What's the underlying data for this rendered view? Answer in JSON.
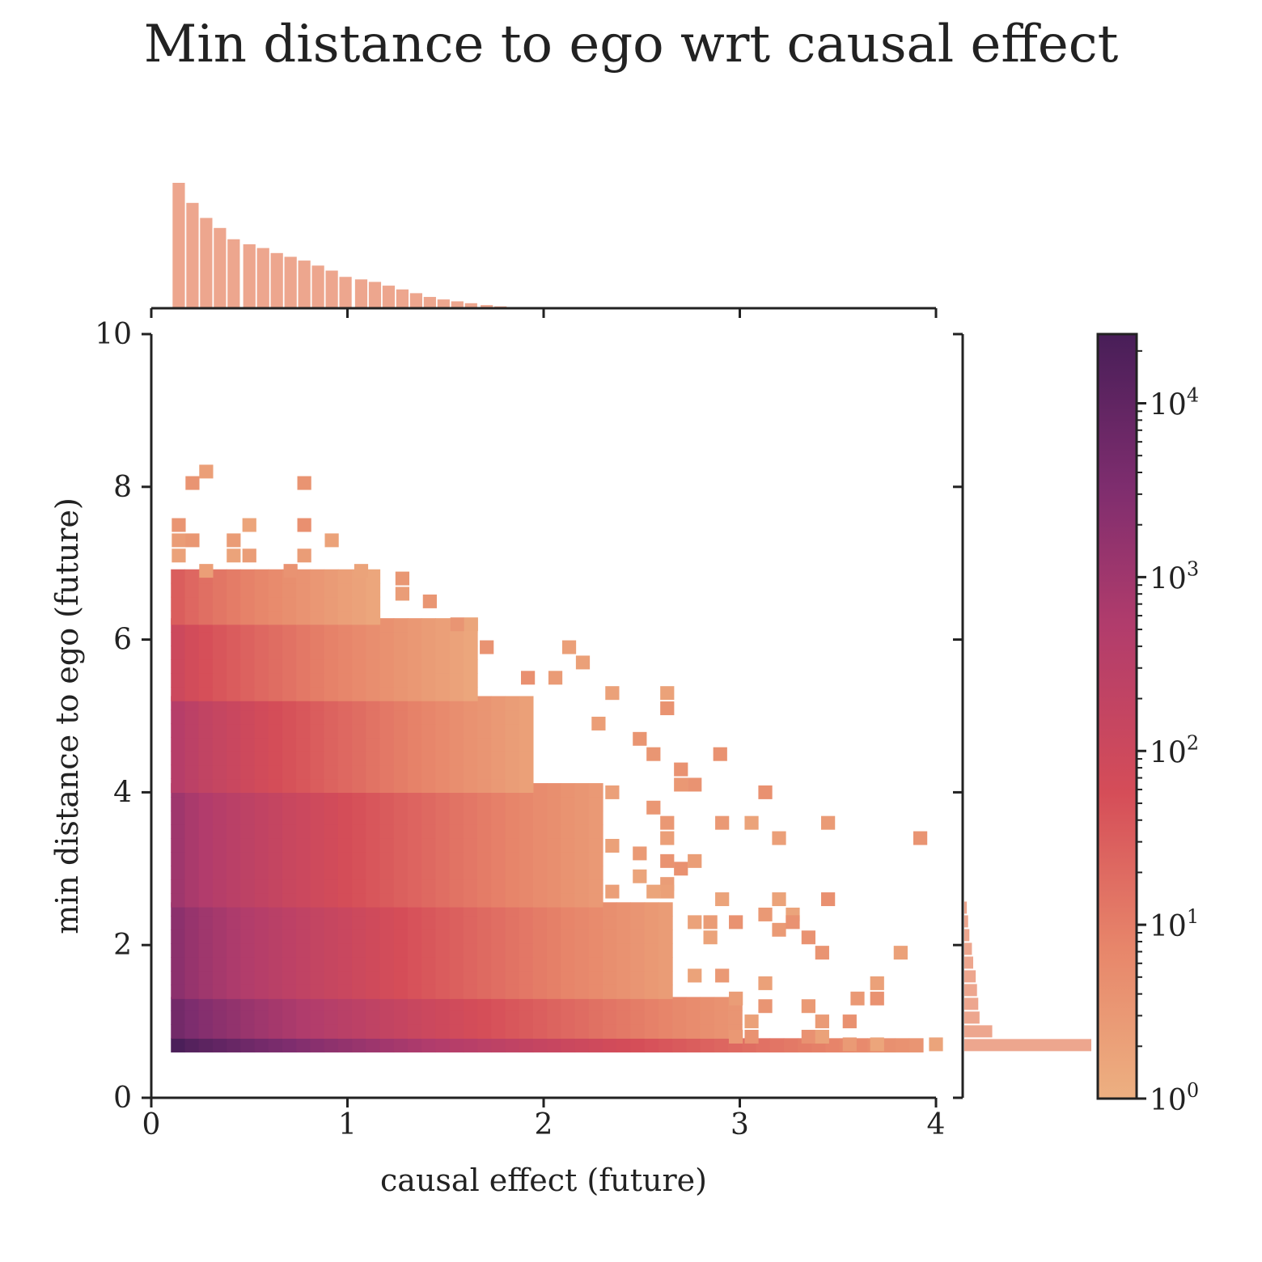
{
  "chart_data": {
    "type": "heatmap",
    "title": "Min distance to ego wrt causal effect",
    "xlabel": "causal effect (future)",
    "ylabel": "min distance to ego (future)",
    "xlim": [
      0,
      4
    ],
    "ylim": [
      0,
      10
    ],
    "x_ticks": [
      "0",
      "1",
      "2",
      "3",
      "4"
    ],
    "y_ticks": [
      "0",
      "2",
      "4",
      "6",
      "8",
      "10"
    ],
    "bin_width_x": 0.071,
    "bin_height_y": 0.18,
    "colorbar": {
      "scale": "log",
      "range": [
        1,
        25000
      ],
      "ticks": [
        {
          "base": "10",
          "exp": "0"
        },
        {
          "base": "10",
          "exp": "1"
        },
        {
          "base": "10",
          "exp": "2"
        },
        {
          "base": "10",
          "exp": "3"
        },
        {
          "base": "10",
          "exp": "4"
        }
      ],
      "colormap": "flare"
    },
    "marginal_color": "#eda68e",
    "marginal_x": {
      "x": [
        0.14,
        0.21,
        0.28,
        0.35,
        0.42,
        0.5,
        0.57,
        0.64,
        0.71,
        0.78,
        0.85,
        0.92,
        0.99,
        1.07,
        1.14,
        1.21,
        1.28,
        1.35,
        1.42,
        1.49,
        1.56,
        1.63,
        1.71,
        1.78
      ],
      "counts": [
        1.0,
        0.84,
        0.72,
        0.64,
        0.55,
        0.51,
        0.48,
        0.44,
        0.41,
        0.38,
        0.34,
        0.3,
        0.25,
        0.23,
        0.21,
        0.18,
        0.15,
        0.12,
        0.09,
        0.07,
        0.055,
        0.04,
        0.025,
        0.015
      ]
    },
    "marginal_y": {
      "y": [
        0.6,
        0.78,
        0.96,
        1.14,
        1.32,
        1.5,
        1.68,
        1.86,
        2.04,
        2.22,
        2.4
      ],
      "counts": [
        1.0,
        0.22,
        0.12,
        0.11,
        0.1,
        0.09,
        0.07,
        0.06,
        0.04,
        0.03,
        0.02
      ]
    },
    "main_cells": [
      {
        "x_max": 3.92,
        "y_min": 0.6,
        "y_max": 0.78,
        "log_max": 4.35,
        "log_min": 0.5
      },
      {
        "x_max": 3.0,
        "y_min": 0.78,
        "y_max": 1.3,
        "log_max": 3.7,
        "log_min": 0.5
      },
      {
        "x_max": 2.6,
        "y_min": 1.3,
        "y_max": 2.5,
        "log_max": 3.3,
        "log_min": 0.4
      },
      {
        "x_max": 2.3,
        "y_min": 2.5,
        "y_max": 4.0,
        "log_max": 3.0,
        "log_min": 0.4
      },
      {
        "x_max": 1.9,
        "y_min": 4.0,
        "y_max": 5.2,
        "log_max": 2.6,
        "log_min": 0.3
      },
      {
        "x_max": 1.6,
        "y_min": 5.2,
        "y_max": 6.2,
        "log_max": 2.0,
        "log_min": 0.2
      },
      {
        "x_max": 1.1,
        "y_min": 6.2,
        "y_max": 6.9,
        "log_max": 1.5,
        "log_min": 0.2
      }
    ],
    "sparse_points": [
      [
        0.14,
        7.5
      ],
      [
        0.14,
        7.3
      ],
      [
        0.14,
        7.1
      ],
      [
        0.21,
        7.3
      ],
      [
        0.21,
        8.05
      ],
      [
        0.28,
        8.2
      ],
      [
        0.28,
        6.9
      ],
      [
        0.42,
        7.3
      ],
      [
        0.42,
        7.1
      ],
      [
        0.5,
        7.5
      ],
      [
        0.5,
        7.1
      ],
      [
        0.78,
        8.05
      ],
      [
        0.78,
        7.5
      ],
      [
        0.78,
        7.1
      ],
      [
        0.92,
        7.3
      ],
      [
        0.71,
        6.9
      ],
      [
        1.07,
        6.9
      ],
      [
        1.28,
        6.8
      ],
      [
        1.28,
        6.6
      ],
      [
        1.42,
        6.5
      ],
      [
        1.56,
        6.2
      ],
      [
        1.63,
        6.2
      ],
      [
        1.71,
        5.9
      ],
      [
        2.13,
        5.9
      ],
      [
        2.2,
        5.7
      ],
      [
        1.92,
        5.5
      ],
      [
        2.06,
        5.5
      ],
      [
        2.35,
        5.3
      ],
      [
        2.63,
        5.3
      ],
      [
        2.63,
        5.1
      ],
      [
        2.28,
        4.9
      ],
      [
        2.49,
        4.7
      ],
      [
        2.56,
        4.5
      ],
      [
        2.9,
        4.5
      ],
      [
        2.7,
        4.3
      ],
      [
        2.7,
        4.1
      ],
      [
        2.77,
        4.1
      ],
      [
        3.13,
        4.0
      ],
      [
        2.35,
        4.0
      ],
      [
        2.56,
        3.8
      ],
      [
        2.63,
        3.6
      ],
      [
        2.63,
        3.4
      ],
      [
        2.91,
        3.6
      ],
      [
        3.06,
        3.6
      ],
      [
        3.45,
        3.6
      ],
      [
        3.2,
        3.4
      ],
      [
        3.92,
        3.4
      ],
      [
        2.35,
        3.3
      ],
      [
        2.49,
        3.2
      ],
      [
        2.63,
        3.1
      ],
      [
        2.7,
        3.0
      ],
      [
        2.77,
        3.1
      ],
      [
        2.49,
        2.9
      ],
      [
        2.63,
        2.8
      ],
      [
        2.35,
        2.7
      ],
      [
        2.56,
        2.7
      ],
      [
        2.63,
        2.7
      ],
      [
        2.91,
        2.6
      ],
      [
        3.2,
        2.6
      ],
      [
        3.45,
        2.6
      ],
      [
        3.13,
        2.4
      ],
      [
        3.27,
        2.4
      ],
      [
        2.77,
        2.3
      ],
      [
        2.85,
        2.3
      ],
      [
        2.98,
        2.3
      ],
      [
        3.2,
        2.2
      ],
      [
        3.27,
        2.3
      ],
      [
        2.85,
        2.1
      ],
      [
        3.35,
        2.1
      ],
      [
        3.42,
        1.9
      ],
      [
        3.82,
        1.9
      ],
      [
        2.77,
        1.6
      ],
      [
        2.91,
        1.6
      ],
      [
        3.13,
        1.5
      ],
      [
        3.7,
        1.5
      ],
      [
        3.6,
        1.3
      ],
      [
        3.7,
        1.3
      ],
      [
        2.98,
        1.3
      ],
      [
        3.13,
        1.2
      ],
      [
        3.35,
        1.2
      ],
      [
        3.06,
        1.0
      ],
      [
        3.42,
        1.0
      ],
      [
        3.56,
        1.0
      ],
      [
        3.35,
        0.8
      ],
      [
        3.42,
        0.8
      ],
      [
        3.06,
        0.8
      ],
      [
        2.98,
        0.8
      ],
      [
        3.7,
        0.7
      ],
      [
        3.56,
        0.7
      ],
      [
        4.0,
        0.7
      ]
    ]
  }
}
